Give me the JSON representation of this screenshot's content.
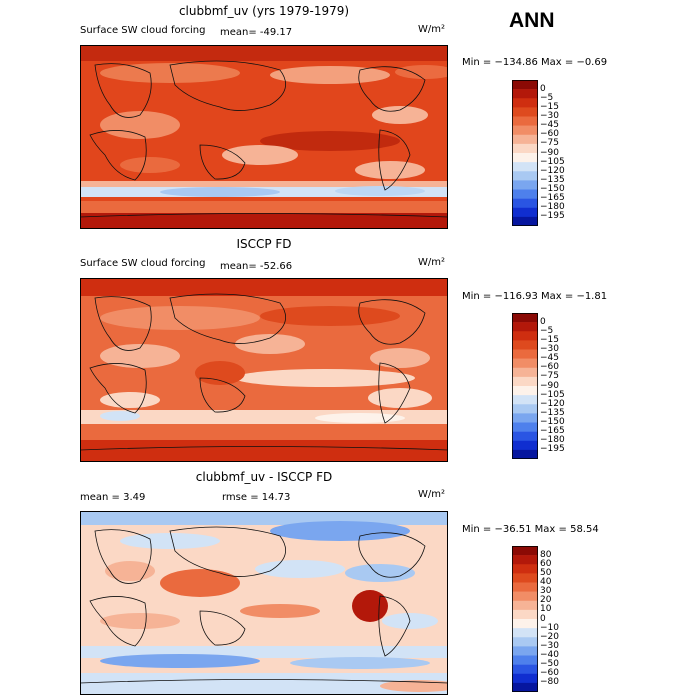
{
  "season": "ANN",
  "panels": [
    {
      "id": "model",
      "title": "clubbmf_uv (yrs 1979-1979)",
      "left_label": "Surface SW cloud forcing",
      "stat_label": "mean= -49.17",
      "units": "W/m²",
      "minmax": "Min = −134.86  Max =  −0.69",
      "colorbar_labels": [
        "0",
        "−5",
        "−15",
        "−30",
        "−45",
        "−60",
        "−75",
        "−90",
        "−105",
        "−120",
        "−135",
        "−150",
        "−165",
        "−180",
        "−195"
      ],
      "colorbar_colors": [
        "#8b0a05",
        "#b3180a",
        "#cf2e10",
        "#de4a1e",
        "#ea6a3e",
        "#f18d66",
        "#f6b396",
        "#fbd8c5",
        "#fdf2ea",
        "#d2e3f6",
        "#a9c9f2",
        "#7aa6ef",
        "#4e80ec",
        "#2a55e3",
        "#102ed0",
        "#06169f"
      ]
    },
    {
      "id": "obs",
      "title": "ISCCP FD",
      "left_label": "Surface SW cloud forcing",
      "stat_label": "mean= -52.66",
      "units": "W/m²",
      "minmax": "Min = −116.93  Max =  −1.81",
      "colorbar_labels": [
        "0",
        "−5",
        "−15",
        "−30",
        "−45",
        "−60",
        "−75",
        "−90",
        "−105",
        "−120",
        "−135",
        "−150",
        "−165",
        "−180",
        "−195"
      ],
      "colorbar_colors": [
        "#8b0a05",
        "#b3180a",
        "#cf2e10",
        "#de4a1e",
        "#ea6a3e",
        "#f18d66",
        "#f6b396",
        "#fbd8c5",
        "#fdf2ea",
        "#d2e3f6",
        "#a9c9f2",
        "#7aa6ef",
        "#4e80ec",
        "#2a55e3",
        "#102ed0",
        "#06169f"
      ]
    },
    {
      "id": "diff",
      "title": "clubbmf_uv - ISCCP FD",
      "left_label": "mean =    3.49",
      "stat_label": "rmse =   14.73",
      "units": "W/m²",
      "minmax": "Min = −36.51  Max =  58.54",
      "colorbar_labels": [
        "80",
        "60",
        "50",
        "40",
        "30",
        "20",
        "10",
        "0",
        "−10",
        "−20",
        "−30",
        "−40",
        "−50",
        "−60",
        "−80"
      ],
      "colorbar_colors": [
        "#8b0a05",
        "#b3180a",
        "#cf2e10",
        "#de4a1e",
        "#ea6a3e",
        "#f18d66",
        "#f6b396",
        "#fbd8c5",
        "#fdf2ea",
        "#d2e3f6",
        "#a9c9f2",
        "#7aa6ef",
        "#4e80ec",
        "#2a55e3",
        "#102ed0",
        "#06169f"
      ]
    }
  ]
}
